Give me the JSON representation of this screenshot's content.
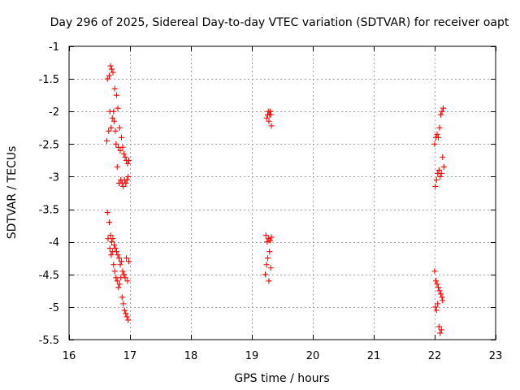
{
  "chart_data": {
    "type": "scatter",
    "title": "Day 296 of 2025, Sidereal Day-to-day VTEC variation (SDTVAR) for receiver oapt",
    "xlabel": "GPS time / hours",
    "ylabel": "SDTVAR / TECUs",
    "xlim": [
      16,
      23
    ],
    "ylim": [
      -5.5,
      -1
    ],
    "xticks": [
      16,
      17,
      18,
      19,
      20,
      21,
      22,
      23
    ],
    "yticks": [
      -1,
      -1.5,
      -2,
      -2.5,
      -3,
      -3.5,
      -4,
      -4.5,
      -5,
      -5.5
    ],
    "xtick_labels": [
      "16",
      "17",
      "18",
      "19",
      "20",
      "21",
      "22",
      "23"
    ],
    "ytick_labels": [
      "-1",
      "-1.5",
      "-2",
      "-2.5",
      "-3",
      "-3.5",
      "-4",
      "-4.5",
      "-5",
      "-5.5"
    ],
    "grid": true,
    "marker": "+",
    "color": "#ff0000",
    "series": [
      {
        "name": "satellite-track-1-upper",
        "x": [
          16.62,
          16.63,
          16.65,
          16.66,
          16.67,
          16.68,
          16.69,
          16.7,
          16.71,
          16.72,
          16.73,
          16.74,
          16.75,
          16.76,
          16.77,
          16.78,
          16.79,
          16.8,
          16.81,
          16.82,
          16.83,
          16.84,
          16.85,
          16.86,
          16.87,
          16.88,
          16.89,
          16.9,
          16.91,
          16.92,
          16.93,
          16.94,
          16.95,
          16.96,
          16.97,
          16.98
        ],
        "y": [
          -2.45,
          -1.5,
          -2.3,
          -1.45,
          -2.0,
          -1.3,
          -2.25,
          -1.35,
          -2.1,
          -1.4,
          -2.0,
          -2.15,
          -1.65,
          -2.3,
          -2.5,
          -1.75,
          -2.85,
          -1.95,
          -2.55,
          -3.1,
          -2.25,
          -2.6,
          -3.05,
          -2.4,
          -3.1,
          -2.55,
          -3.15,
          -2.65,
          -3.05,
          -2.7,
          -3.1,
          -2.75,
          -3.05,
          -2.8,
          -3.0,
          -2.75
        ]
      },
      {
        "name": "satellite-track-1-lower",
        "x": [
          16.63,
          16.64,
          16.66,
          16.67,
          16.68,
          16.69,
          16.7,
          16.71,
          16.72,
          16.73,
          16.74,
          16.75,
          16.76,
          16.77,
          16.78,
          16.79,
          16.8,
          16.81,
          16.82,
          16.83,
          16.84,
          16.85,
          16.86,
          16.87,
          16.88,
          16.89,
          16.9,
          16.91,
          16.92,
          16.93,
          16.94,
          16.95,
          16.96,
          16.97,
          16.98
        ],
        "y": [
          -3.55,
          -3.95,
          -3.7,
          -4.1,
          -3.9,
          -4.2,
          -4.0,
          -4.15,
          -3.95,
          -4.35,
          -4.05,
          -4.45,
          -4.1,
          -4.55,
          -4.15,
          -4.6,
          -4.2,
          -4.7,
          -4.25,
          -4.65,
          -4.35,
          -4.55,
          -4.3,
          -4.85,
          -4.45,
          -4.95,
          -4.5,
          -5.05,
          -4.55,
          -5.1,
          -4.25,
          -5.15,
          -4.6,
          -5.2,
          -4.3
        ]
      },
      {
        "name": "satellite-track-2-upper",
        "x": [
          19.24,
          19.26,
          19.27,
          19.28,
          19.29,
          19.3,
          19.31,
          19.32
        ],
        "y": [
          -2.1,
          -2.05,
          -2.0,
          -2.15,
          -2.05,
          -2.0,
          -2.05,
          -2.22
        ]
      },
      {
        "name": "satellite-track-2-lower",
        "x": [
          19.22,
          19.23,
          19.24,
          19.25,
          19.26,
          19.27,
          19.28,
          19.29,
          19.3,
          19.31,
          19.32
        ],
        "y": [
          -4.5,
          -3.9,
          -4.35,
          -4.0,
          -4.25,
          -3.95,
          -4.6,
          -4.15,
          -3.98,
          -4.4,
          -3.93
        ]
      },
      {
        "name": "satellite-track-3-upper",
        "x": [
          22.0,
          22.01,
          22.02,
          22.03,
          22.04,
          22.05,
          22.06,
          22.07,
          22.08,
          22.09,
          22.1,
          22.11,
          22.12,
          22.13,
          22.14,
          22.15
        ],
        "y": [
          -2.5,
          -3.15,
          -2.4,
          -3.05,
          -2.35,
          -2.95,
          -2.4,
          -2.9,
          -2.25,
          -3.0,
          -2.05,
          -2.95,
          -2.0,
          -2.7,
          -1.95,
          -2.85
        ]
      },
      {
        "name": "satellite-track-3-lower",
        "x": [
          22.0,
          22.01,
          22.02,
          22.03,
          22.04,
          22.05,
          22.06,
          22.07,
          22.08,
          22.09,
          22.1,
          22.11,
          22.12,
          22.13
        ],
        "y": [
          -4.45,
          -5.0,
          -4.6,
          -5.05,
          -4.65,
          -4.95,
          -4.7,
          -5.3,
          -4.75,
          -5.4,
          -4.8,
          -5.35,
          -4.85,
          -4.9
        ]
      }
    ]
  }
}
